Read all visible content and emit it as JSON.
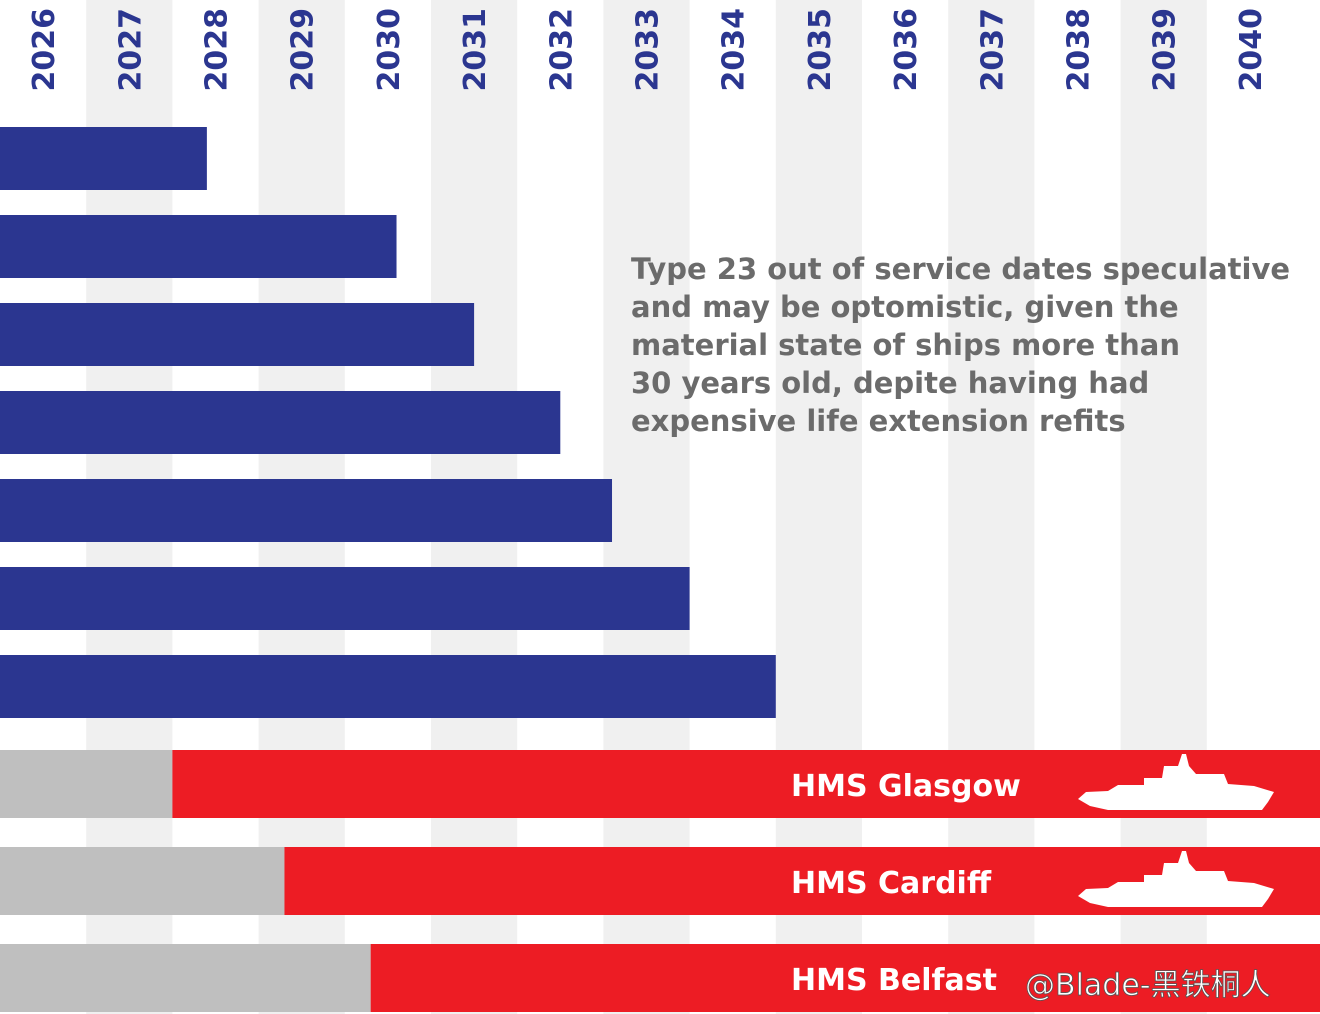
{
  "chart_data": {
    "type": "bar",
    "x_axis": {
      "ticks": [
        "2026",
        "2027",
        "2028",
        "2029",
        "2030",
        "2031",
        "2032",
        "2033",
        "2034",
        "2035",
        "2036",
        "2037",
        "2038",
        "2039",
        "2040"
      ],
      "range": [
        2026,
        2041
      ]
    },
    "note": [
      "Type 23 out of service dates speculative",
      "and may be optomistic, given the",
      "material state of ships more than",
      "30 years old, depite having had",
      "expensive life extension refits"
    ],
    "type23_bars": [
      {
        "end": 2028.4
      },
      {
        "end": 2030.6
      },
      {
        "end": 2031.5
      },
      {
        "end": 2032.5
      },
      {
        "end": 2033.1
      },
      {
        "end": 2034.0
      },
      {
        "end": 2035.0
      }
    ],
    "type26_bars": [
      {
        "name": "HMS Glasgow",
        "in_service": 2028.0
      },
      {
        "name": "HMS Cardiff",
        "in_service": 2029.3
      },
      {
        "name": "HMS Belfast",
        "in_service": 2030.3
      }
    ],
    "colors": {
      "type23": "#2b3690",
      "type26": "#ed1c24",
      "pre_service": "#bfbfbf",
      "stripe": "#f0f0f0",
      "year_text": "#2b3690",
      "note_text": "#6b6b6b"
    },
    "icons": {
      "ship": "frigate-silhouette-icon"
    },
    "watermark": "@Blade-黑铁桐人"
  }
}
